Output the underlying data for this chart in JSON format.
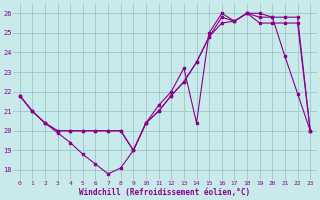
{
  "xlabel": "Windchill (Refroidissement éolien,°C)",
  "bg_color": "#c8eaea",
  "grid_color": "#a0c8c8",
  "line_color": "#8b008b",
  "ylim": [
    17.5,
    26.5
  ],
  "xlim": [
    -0.5,
    23.5
  ],
  "yticks": [
    18,
    19,
    20,
    21,
    22,
    23,
    24,
    25,
    26
  ],
  "xticks": [
    0,
    1,
    2,
    3,
    4,
    5,
    6,
    7,
    8,
    9,
    10,
    11,
    12,
    13,
    14,
    15,
    16,
    17,
    18,
    19,
    20,
    21,
    22,
    23
  ],
  "series1_x": [
    0,
    1,
    2,
    3,
    4,
    5,
    6,
    7,
    8,
    9,
    10,
    11,
    12,
    13,
    14,
    15,
    16,
    17,
    18,
    19,
    20,
    21,
    22,
    23
  ],
  "series1_y": [
    21.8,
    21.0,
    20.4,
    19.9,
    19.4,
    18.8,
    18.3,
    17.8,
    18.1,
    19.0,
    20.4,
    21.3,
    22.0,
    23.2,
    20.4,
    25.0,
    26.0,
    25.6,
    26.0,
    26.0,
    25.8,
    23.8,
    21.9,
    20.0
  ],
  "series2_x": [
    0,
    1,
    2,
    3,
    4,
    5,
    6,
    7,
    8,
    9,
    10,
    11,
    12,
    13,
    14,
    15,
    16,
    17,
    18,
    19,
    20,
    21,
    22,
    23
  ],
  "series2_y": [
    21.8,
    21.0,
    20.4,
    20.0,
    20.0,
    20.0,
    20.0,
    20.0,
    20.0,
    19.0,
    20.4,
    21.0,
    21.8,
    22.5,
    23.5,
    24.8,
    25.8,
    25.6,
    26.0,
    25.8,
    25.8,
    25.8,
    25.8,
    20.0
  ],
  "series3_x": [
    0,
    1,
    2,
    3,
    4,
    5,
    6,
    7,
    8,
    9,
    10,
    11,
    12,
    13,
    14,
    15,
    16,
    17,
    18,
    19,
    20,
    21,
    22,
    23
  ],
  "series3_y": [
    21.8,
    21.0,
    20.4,
    20.0,
    20.0,
    20.0,
    20.0,
    20.0,
    20.0,
    19.0,
    20.4,
    21.0,
    21.8,
    22.5,
    23.5,
    24.8,
    25.5,
    25.6,
    26.0,
    25.5,
    25.5,
    25.5,
    25.5,
    20.0
  ]
}
